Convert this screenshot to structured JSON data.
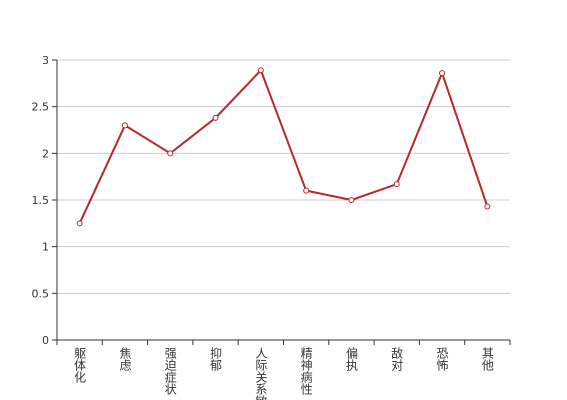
{
  "chart_data": {
    "type": "line",
    "categories": [
      "躯体化",
      "焦虑",
      "强迫症状",
      "抑郁",
      "人际关系敏感",
      "精神病性",
      "偏执",
      "敌对",
      "恐怖",
      "其他"
    ],
    "values": [
      1.25,
      2.3,
      2.0,
      2.38,
      2.89,
      1.6,
      1.5,
      1.67,
      2.86,
      1.43
    ],
    "color": "#b5282c",
    "ylim": [
      0,
      3
    ],
    "yticks": [
      0,
      0.5,
      1,
      1.5,
      2,
      2.5,
      3
    ],
    "grid": true
  }
}
